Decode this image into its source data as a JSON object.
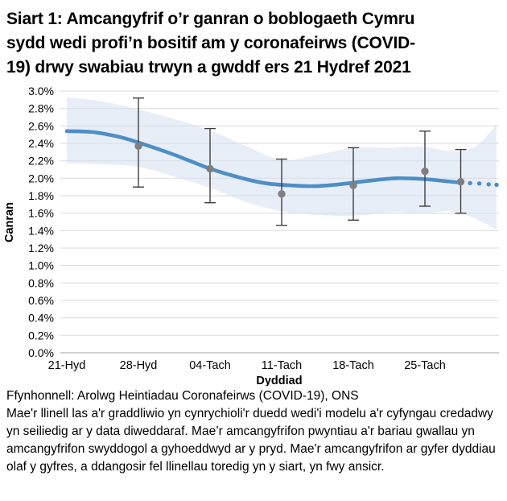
{
  "title_lines": [
    "Siart 1: Amcangyfrif o’r ganran o boblogaeth Cymru",
    "sydd wedi profi’n bositif am y coronafeirws (COVID-",
    "19) drwy swabiau trwyn a gwddf ers 21 Hydref 2021"
  ],
  "chart_data": {
    "type": "line",
    "xlabel": "Dyddiad",
    "ylabel": "Canran",
    "ylim": [
      0.0,
      3.0
    ],
    "ytick_step": 0.2,
    "ytick_format": "percent-1dp",
    "grid": true,
    "categories": [
      "21-Hyd",
      "28-Hyd",
      "04-Tach",
      "11-Tach",
      "18-Tach",
      "25-Tach"
    ],
    "x_range": [
      0,
      6
    ],
    "colors": {
      "trend": "#4e8ec6",
      "band": "#d5e0f0",
      "point": "#7f7f7f",
      "error": "#404040",
      "grid": "#d9d9d9",
      "axis": "#a6a6a6",
      "text": "#000000"
    },
    "trend": {
      "comment": "modelled trend (llinell las); x in weeks since 21-Hyd",
      "x": [
        0,
        0.35,
        0.7,
        1.0,
        1.5,
        2.0,
        2.5,
        2.8,
        3.1,
        3.45,
        3.8,
        4.2,
        4.6,
        5.0,
        5.25,
        5.5
      ],
      "y": [
        2.54,
        2.53,
        2.48,
        2.41,
        2.27,
        2.11,
        1.99,
        1.94,
        1.92,
        1.91,
        1.93,
        1.97,
        2.0,
        1.99,
        1.97,
        1.95
      ],
      "solid_until": 5.5,
      "dotted": {
        "x": [
          5.63,
          5.76,
          5.89,
          6.0
        ],
        "y": [
          1.945,
          1.94,
          1.93,
          1.925
        ]
      }
    },
    "band": {
      "comment": "credible interval (graddliwio)",
      "x": [
        0,
        0.5,
        1.0,
        1.5,
        2.0,
        2.5,
        3.0,
        3.5,
        4.0,
        4.5,
        5.0,
        5.35,
        5.7,
        6.0
      ],
      "upper": [
        2.93,
        2.88,
        2.79,
        2.68,
        2.55,
        2.37,
        2.21,
        2.27,
        2.35,
        2.35,
        2.36,
        2.31,
        2.36,
        2.62
      ],
      "lower": [
        2.17,
        2.16,
        2.13,
        2.02,
        1.89,
        1.73,
        1.62,
        1.58,
        1.57,
        1.61,
        1.6,
        1.62,
        1.54,
        1.41
      ]
    },
    "points": [
      {
        "date": "28-Hyd",
        "x": 1.0,
        "y": 2.37,
        "lo": 1.9,
        "hi": 2.92
      },
      {
        "date": "04-Tach",
        "x": 2.0,
        "y": 2.11,
        "lo": 1.72,
        "hi": 2.57
      },
      {
        "date": "11-Tach",
        "x": 3.0,
        "y": 1.82,
        "lo": 1.46,
        "hi": 2.22
      },
      {
        "date": "18-Tach",
        "x": 4.0,
        "y": 1.92,
        "lo": 1.52,
        "hi": 2.35
      },
      {
        "date": "25-Tach",
        "x": 5.0,
        "y": 2.08,
        "lo": 1.68,
        "hi": 2.54
      },
      {
        "date": "",
        "x": 5.5,
        "y": 1.96,
        "lo": 1.6,
        "hi": 2.33
      }
    ]
  },
  "footer": {
    "source": "Ffynhonnell: Arolwg Heintiadau Coronafeirws (COVID-19), ONS",
    "note": "Mae'r llinell las a'r graddliwio yn cynrychioli'r duedd wedi'i modelu a'r cyfyngau credadwy yn seiliedig ar y data diweddaraf. Mae’r amcangyfrifon pwyntiau a'r bariau gwallau yn amcangyfrifon swyddogol a gyhoeddwyd ar y pryd. Mae'r amcangyfrifon ar gyfer dyddiau olaf y gyfres, a ddangosir fel llinellau toredig yn y siart, yn fwy ansicr."
  }
}
